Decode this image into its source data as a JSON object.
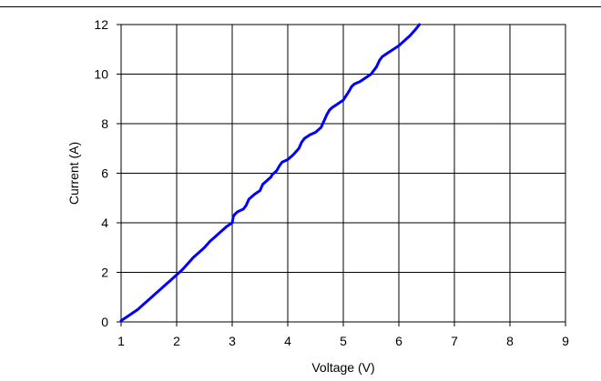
{
  "chart_data": {
    "type": "line",
    "title": "",
    "xlabel": "Voltage (V)",
    "ylabel": "Current (A)",
    "xlim": [
      1,
      9
    ],
    "ylim": [
      0,
      12
    ],
    "xticks": [
      "1",
      "2",
      "3",
      "4",
      "5",
      "6",
      "7",
      "8",
      "9"
    ],
    "yticks": [
      "0",
      "2",
      "4",
      "6",
      "8",
      "10",
      "12"
    ],
    "grid": true,
    "legend": "none",
    "series": [
      {
        "color": "#0000ff",
        "x": [
          1.0,
          1.1,
          1.2,
          1.3,
          1.4,
          1.5,
          1.6,
          1.7,
          1.8,
          1.9,
          2.0,
          2.1,
          2.2,
          2.3,
          2.4,
          2.5,
          2.6,
          2.7,
          2.8,
          2.9,
          3.0,
          3.02,
          3.05,
          3.1,
          3.2,
          3.25,
          3.3,
          3.35,
          3.4,
          3.5,
          3.55,
          3.6,
          3.65,
          3.7,
          3.72,
          3.75,
          3.8,
          3.85,
          3.9,
          4.0,
          4.1,
          4.2,
          4.25,
          4.3,
          4.4,
          4.5,
          4.6,
          4.65,
          4.7,
          4.75,
          4.8,
          4.9,
          5.0,
          5.1,
          5.15,
          5.2,
          5.3,
          5.4,
          5.5,
          5.6,
          5.65,
          5.7,
          5.8,
          5.9,
          6.0,
          6.1,
          6.2,
          6.3,
          6.37
        ],
        "y": [
          0.05,
          0.2,
          0.35,
          0.5,
          0.7,
          0.9,
          1.1,
          1.3,
          1.5,
          1.7,
          1.9,
          2.1,
          2.35,
          2.6,
          2.8,
          3.0,
          3.25,
          3.45,
          3.65,
          3.85,
          4.0,
          4.25,
          4.35,
          4.45,
          4.55,
          4.7,
          4.95,
          5.05,
          5.15,
          5.3,
          5.55,
          5.65,
          5.75,
          5.85,
          5.95,
          6.0,
          6.1,
          6.3,
          6.45,
          6.55,
          6.75,
          7.0,
          7.25,
          7.4,
          7.55,
          7.65,
          7.85,
          8.1,
          8.35,
          8.55,
          8.65,
          8.8,
          8.95,
          9.3,
          9.5,
          9.6,
          9.7,
          9.85,
          10.0,
          10.3,
          10.55,
          10.7,
          10.85,
          11.0,
          11.15,
          11.35,
          11.55,
          11.8,
          12.0
        ]
      }
    ]
  }
}
